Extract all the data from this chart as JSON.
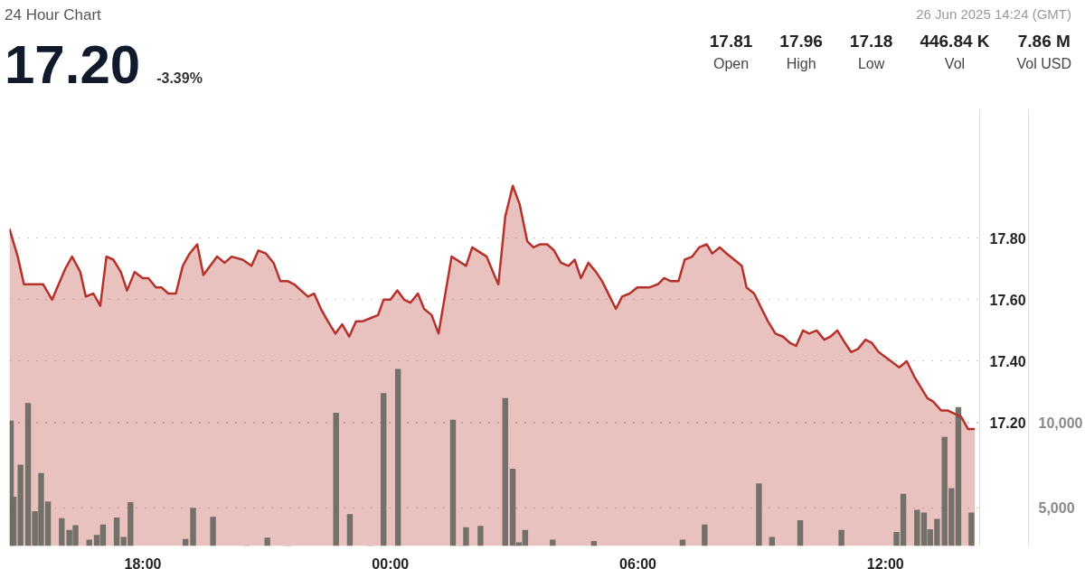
{
  "chart_data": {
    "type": "area",
    "subtitle": "24 Hour Chart",
    "annotations": [
      "17.20",
      "-3.39%",
      "26 Jun 2025 14:24 (GMT)",
      "17.81",
      "Open",
      "17.96",
      "High",
      "17.18",
      "Low",
      "446.84 K",
      "Vol",
      "7.86 M",
      "Vol USD"
    ],
    "xlim": [
      "2025-06-25T14:46",
      "2025-06-26T14:17"
    ],
    "xticks": [
      {
        "value": "2025-06-25T18:00",
        "label": "18:00"
      },
      {
        "value": "2025-06-26T00:00",
        "label": "00:00"
      },
      {
        "value": "2025-06-26T06:00",
        "label": "06:00"
      },
      {
        "value": "2025-06-26T12:00",
        "label": "12:00"
      }
    ],
    "ylim": [
      16.8,
      18.22
    ],
    "yticks": [
      {
        "value": 17.2,
        "label": "17.20"
      },
      {
        "value": 17.4,
        "label": "17.40"
      },
      {
        "value": 17.6,
        "label": "17.60"
      },
      {
        "value": 17.8,
        "label": "17.80"
      }
    ],
    "y2lim": [
      2760,
      28370
    ],
    "y2ticks": [
      {
        "value": 5000,
        "label": "5,000"
      },
      {
        "value": 10000,
        "label": "10,000"
      }
    ],
    "grid": "y",
    "series": [
      {
        "color": "#b5322a",
        "x": [
          "2025-06-25T14:46",
          "2025-06-25T14:58",
          "2025-06-25T15:07",
          "2025-06-25T15:35",
          "2025-06-25T15:48",
          "2025-06-25T16:07",
          "2025-06-25T16:17",
          "2025-06-25T16:29",
          "2025-06-25T16:37",
          "2025-06-25T16:48",
          "2025-06-25T16:58",
          "2025-06-25T17:07",
          "2025-06-25T17:17",
          "2025-06-25T17:28",
          "2025-06-25T17:37",
          "2025-06-25T17:48",
          "2025-06-25T18:00",
          "2025-06-25T18:08",
          "2025-06-25T18:19",
          "2025-06-25T18:27",
          "2025-06-25T18:37",
          "2025-06-25T18:48",
          "2025-06-25T18:58",
          "2025-06-25T19:08",
          "2025-06-25T19:19",
          "2025-06-25T19:28",
          "2025-06-25T19:48",
          "2025-06-25T19:59",
          "2025-06-25T20:09",
          "2025-06-25T20:25",
          "2025-06-25T20:38",
          "2025-06-25T20:48",
          "2025-06-25T20:59",
          "2025-06-25T21:10",
          "2025-06-25T21:20",
          "2025-06-25T21:31",
          "2025-06-25T21:40",
          "2025-06-25T22:00",
          "2025-06-25T22:09",
          "2025-06-25T22:19",
          "2025-06-25T22:29",
          "2025-06-25T22:40",
          "2025-06-25T22:50",
          "2025-06-25T23:00",
          "2025-06-25T23:10",
          "2025-06-25T23:20",
          "2025-06-25T23:31",
          "2025-06-25T23:42",
          "2025-06-25T23:50",
          "2025-06-26T00:00",
          "2025-06-26T00:10",
          "2025-06-26T00:20",
          "2025-06-26T00:29",
          "2025-06-26T00:40",
          "2025-06-26T00:49",
          "2025-06-26T01:00",
          "2025-06-26T01:10",
          "2025-06-26T01:29",
          "2025-06-26T01:50",
          "2025-06-26T01:59",
          "2025-06-26T02:20",
          "2025-06-26T02:31",
          "2025-06-26T02:37",
          "2025-06-26T02:47",
          "2025-06-26T02:58",
          "2025-06-26T03:08",
          "2025-06-26T03:19",
          "2025-06-26T03:28",
          "2025-06-26T03:38",
          "2025-06-26T03:48",
          "2025-06-26T03:58",
          "2025-06-26T04:08",
          "2025-06-26T04:19",
          "2025-06-26T04:28",
          "2025-06-26T04:37",
          "2025-06-26T04:48",
          "2025-06-26T04:59",
          "2025-06-26T05:08",
          "2025-06-26T05:19",
          "2025-06-26T05:28",
          "2025-06-26T05:37",
          "2025-06-26T05:48",
          "2025-06-26T05:59",
          "2025-06-26T06:17",
          "2025-06-26T06:29",
          "2025-06-26T06:38",
          "2025-06-26T06:48",
          "2025-06-26T06:59",
          "2025-06-26T07:08",
          "2025-06-26T07:19",
          "2025-06-26T07:29",
          "2025-06-26T07:40",
          "2025-06-26T07:48",
          "2025-06-26T07:59",
          "2025-06-26T08:09",
          "2025-06-26T08:20",
          "2025-06-26T08:31",
          "2025-06-26T08:38",
          "2025-06-26T08:49",
          "2025-06-26T09:00",
          "2025-06-26T09:09",
          "2025-06-26T09:20",
          "2025-06-26T09:31",
          "2025-06-26T09:41",
          "2025-06-26T09:50",
          "2025-06-26T10:00",
          "2025-06-26T10:09",
          "2025-06-26T10:20",
          "2025-06-26T10:31",
          "2025-06-26T10:40",
          "2025-06-26T10:50",
          "2025-06-26T11:01",
          "2025-06-26T11:10",
          "2025-06-26T11:20",
          "2025-06-26T11:31",
          "2025-06-26T11:40",
          "2025-06-26T11:50",
          "2025-06-26T12:02",
          "2025-06-26T12:20",
          "2025-06-26T12:31",
          "2025-06-26T12:42",
          "2025-06-26T13:01",
          "2025-06-26T13:09",
          "2025-06-26T13:21",
          "2025-06-26T13:31",
          "2025-06-26T13:40",
          "2025-06-26T13:50",
          "2025-06-26T14:00",
          "2025-06-26T14:10"
        ],
        "values": [
          17.83,
          17.74,
          17.65,
          17.65,
          17.6,
          17.7,
          17.74,
          17.69,
          17.61,
          17.62,
          17.58,
          17.74,
          17.73,
          17.69,
          17.63,
          17.69,
          17.67,
          17.67,
          17.64,
          17.64,
          17.62,
          17.62,
          17.71,
          17.75,
          17.78,
          17.68,
          17.74,
          17.72,
          17.74,
          17.73,
          17.71,
          17.76,
          17.75,
          17.72,
          17.66,
          17.66,
          17.65,
          17.61,
          17.62,
          17.57,
          17.53,
          17.49,
          17.52,
          17.48,
          17.53,
          17.53,
          17.54,
          17.55,
          17.6,
          17.6,
          17.63,
          17.6,
          17.59,
          17.62,
          17.57,
          17.55,
          17.49,
          17.74,
          17.71,
          17.77,
          17.74,
          17.68,
          17.65,
          17.87,
          17.97,
          17.91,
          17.79,
          17.77,
          17.78,
          17.78,
          17.76,
          17.72,
          17.71,
          17.73,
          17.67,
          17.72,
          17.69,
          17.66,
          17.61,
          17.57,
          17.61,
          17.62,
          17.64,
          17.64,
          17.65,
          17.67,
          17.66,
          17.66,
          17.73,
          17.74,
          17.77,
          17.78,
          17.75,
          17.77,
          17.75,
          17.73,
          17.71,
          17.64,
          17.62,
          17.57,
          17.53,
          17.49,
          17.48,
          17.46,
          17.45,
          17.5,
          17.49,
          17.5,
          17.47,
          17.48,
          17.5,
          17.46,
          17.43,
          17.44,
          17.47,
          17.46,
          17.43,
          17.41,
          17.38,
          17.4,
          17.35,
          17.28,
          17.27,
          17.24,
          17.24,
          17.23,
          17.22,
          17.18,
          17.18
        ]
      },
      {
        "type": "bar",
        "axis": "y2",
        "color": "#6b6b63",
        "x": [
          "2025-06-25T14:48",
          "2025-06-25T14:52",
          "2025-06-25T15:02",
          "2025-06-25T15:13",
          "2025-06-25T15:23",
          "2025-06-25T15:32",
          "2025-06-25T15:42",
          "2025-06-25T16:02",
          "2025-06-25T16:13",
          "2025-06-25T16:22",
          "2025-06-25T16:42",
          "2025-06-25T16:53",
          "2025-06-25T17:02",
          "2025-06-25T17:22",
          "2025-06-25T17:32",
          "2025-06-25T17:42",
          "2025-06-25T19:02",
          "2025-06-25T19:13",
          "2025-06-25T19:42",
          "2025-06-25T20:31",
          "2025-06-25T21:01",
          "2025-06-25T21:31",
          "2025-06-25T22:41",
          "2025-06-25T23:01",
          "2025-06-25T23:31",
          "2025-06-25T23:50",
          "2025-06-26T00:11",
          "2025-06-26T01:31",
          "2025-06-26T01:42",
          "2025-06-26T01:50",
          "2025-06-26T02:11",
          "2025-06-26T02:47",
          "2025-06-26T02:58",
          "2025-06-26T03:07",
          "2025-06-26T03:16",
          "2025-06-26T03:56",
          "2025-06-26T04:56",
          "2025-06-26T07:05",
          "2025-06-26T07:37",
          "2025-06-26T08:56",
          "2025-06-26T09:15",
          "2025-06-26T09:56",
          "2025-06-26T10:56",
          "2025-06-26T12:16",
          "2025-06-26T12:26",
          "2025-06-26T12:46",
          "2025-06-26T12:56",
          "2025-06-26T13:05",
          "2025-06-26T13:15",
          "2025-06-26T13:26",
          "2025-06-26T13:36",
          "2025-06-26T13:46",
          "2025-06-26T14:05"
        ],
        "values": [
          10100,
          5650,
          7520,
          11140,
          4800,
          7030,
          5370,
          4390,
          3700,
          3980,
          3130,
          3410,
          4020,
          4430,
          3290,
          5330,
          3170,
          5000,
          4470,
          null,
          3250,
          null,
          10570,
          4630,
          null,
          11710,
          13130,
          10160,
          null,
          3860,
          3940,
          11420,
          7280,
          2970,
          3700,
          3130,
          3050,
          3130,
          4020,
          6420,
          3290,
          4270,
          3700,
          3580,
          5810,
          4880,
          4720,
          3740,
          4350,
          9150,
          6140,
          10890,
          4720
        ]
      }
    ]
  }
}
